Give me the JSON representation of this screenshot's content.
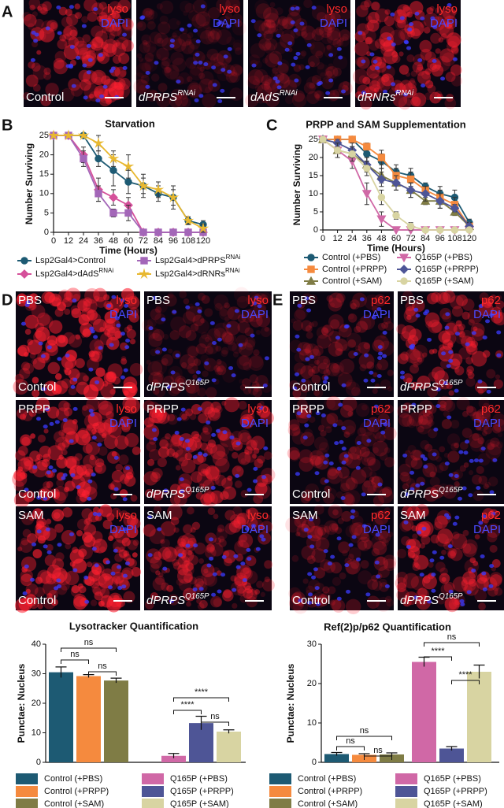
{
  "panel_letters": [
    "A",
    "B",
    "C",
    "D",
    "E"
  ],
  "micrographs": {
    "A": [
      {
        "stain": "lyso",
        "counterstain": "DAPI",
        "genotype": "Control"
      },
      {
        "stain": "lyso",
        "counterstain": "DAPI",
        "genotype": {
          "base": "dPRPS",
          "sup": "RNAi"
        }
      },
      {
        "stain": "lyso",
        "counterstain": "DAPI",
        "genotype": {
          "base": "dAdS",
          "sup": "RNAi"
        }
      },
      {
        "stain": "lyso",
        "counterstain": "DAPI",
        "genotype": {
          "base": "dRNRs",
          "sup": "RNAi"
        }
      }
    ],
    "D": [
      {
        "treatment": "PBS",
        "stain": "lyso",
        "counterstain": "DAPI",
        "genotype": "Control"
      },
      {
        "treatment": "PBS",
        "stain": "lyso",
        "counterstain": "DAPI",
        "genotype": {
          "base": "dPRPS",
          "sup": "Q165P"
        }
      },
      {
        "treatment": "PRPP",
        "stain": "lyso",
        "counterstain": "DAPI",
        "genotype": "Control"
      },
      {
        "treatment": "PRPP",
        "stain": "lyso",
        "counterstain": "DAPI",
        "genotype": {
          "base": "dPRPS",
          "sup": "Q165P"
        }
      },
      {
        "treatment": "SAM",
        "stain": "lyso",
        "counterstain": "DAPI",
        "genotype": "Control"
      },
      {
        "treatment": "SAM",
        "stain": "lyso",
        "counterstain": "DAPI",
        "genotype": {
          "base": "dPRPS",
          "sup": "Q165P"
        }
      }
    ],
    "E": [
      {
        "treatment": "PBS",
        "stain": "p62",
        "counterstain": "DAPI",
        "genotype": "Control"
      },
      {
        "treatment": "PBS",
        "stain": "p62",
        "counterstain": "DAPI",
        "genotype": {
          "base": "dPRPS",
          "sup": "Q165P"
        }
      },
      {
        "treatment": "PRPP",
        "stain": "p62",
        "counterstain": "DAPI",
        "genotype": "Control"
      },
      {
        "treatment": "PRPP",
        "stain": "p62",
        "counterstain": "DAPI",
        "genotype": {
          "base": "dPRPS",
          "sup": "Q165P"
        }
      },
      {
        "treatment": "SAM",
        "stain": "p62",
        "counterstain": "DAPI",
        "genotype": "Control"
      },
      {
        "treatment": "SAM",
        "stain": "p62",
        "counterstain": "DAPI",
        "genotype": {
          "base": "dPRPS",
          "sup": "Q165P"
        }
      }
    ]
  },
  "chart_data": [
    {
      "type": "line",
      "title": "Starvation",
      "x_label": "Time (Hours)",
      "y_label": "Number Surviving",
      "x": [
        0,
        12,
        24,
        36,
        48,
        60,
        72,
        84,
        96,
        108,
        120
      ],
      "xlim": [
        0,
        120
      ],
      "xticks": [
        0,
        12,
        24,
        36,
        48,
        60,
        72,
        84,
        96,
        108,
        120
      ],
      "ylim": [
        0,
        25
      ],
      "yticks": [
        0,
        5,
        10,
        15,
        20,
        25
      ],
      "series": [
        {
          "name": "Lsp2Gal4>Control",
          "color": "#1d5a73",
          "marker": "circle",
          "values": [
            25,
            25,
            25,
            19,
            16,
            13,
            12,
            10,
            9,
            3,
            2
          ],
          "errors": [
            0,
            0,
            0,
            2,
            4,
            3,
            3,
            2,
            3,
            1,
            1
          ]
        },
        {
          "name": "Lsp2Gal4>dAdS",
          "name_sup": "RNAi",
          "color": "#d5509a",
          "marker": "diamond",
          "values": [
            25,
            25,
            20,
            11,
            9,
            7,
            0,
            0,
            0,
            0,
            0
          ],
          "errors": [
            0,
            0,
            2,
            3,
            2,
            2,
            0,
            0,
            0,
            0,
            0
          ]
        },
        {
          "name": "Lsp2Gal4>dPRPS",
          "name_sup": "RNAi",
          "color": "#a366b8",
          "marker": "square",
          "values": [
            25,
            25,
            19,
            10,
            5,
            5,
            0,
            0,
            0,
            0,
            0
          ],
          "errors": [
            0,
            0,
            2,
            2,
            1,
            2,
            0,
            0,
            0,
            0,
            0
          ]
        },
        {
          "name": "Lsp2Gal4>dRNRs",
          "name_sup": "RNAi",
          "color": "#e8b830",
          "marker": "star",
          "values": [
            25,
            25,
            25,
            23,
            19,
            17,
            12,
            11,
            9,
            3,
            1
          ],
          "errors": [
            0,
            0,
            0,
            2,
            2,
            3,
            2,
            2,
            2,
            1,
            1
          ]
        }
      ]
    },
    {
      "type": "line",
      "title": "PRPP and SAM Supplementation",
      "x_label": "Time (Hours)",
      "y_label": "Number Surviving",
      "x": [
        0,
        12,
        24,
        36,
        48,
        60,
        72,
        84,
        96,
        108,
        120
      ],
      "xlim": [
        0,
        120
      ],
      "xticks": [
        0,
        12,
        24,
        36,
        48,
        60,
        72,
        84,
        96,
        108,
        120
      ],
      "ylim": [
        0,
        25
      ],
      "yticks": [
        0,
        5,
        10,
        15,
        20,
        25
      ],
      "series": [
        {
          "name": "Control (+PBS)",
          "color": "#1d5a73",
          "marker": "circle",
          "values": [
            25,
            25,
            25,
            21,
            19,
            16,
            15,
            12,
            10,
            9,
            2
          ],
          "errors": [
            0,
            0,
            0,
            2,
            2,
            2,
            2,
            1,
            2,
            2,
            1
          ]
        },
        {
          "name": "Control (+PRPP)",
          "color": "#f58a3e",
          "marker": "square",
          "values": [
            25,
            25,
            25,
            23,
            20,
            15,
            14,
            11,
            9,
            7,
            1
          ],
          "errors": [
            0,
            0,
            0,
            1,
            2,
            2,
            2,
            1,
            2,
            2,
            1
          ]
        },
        {
          "name": "Control (+SAM)",
          "color": "#7f7c45",
          "marker": "triangle",
          "values": [
            25,
            22,
            21,
            18,
            15,
            13,
            11,
            8,
            8,
            5,
            1
          ],
          "errors": [
            0,
            2,
            2,
            2,
            2,
            2,
            2,
            1,
            2,
            1,
            1
          ]
        },
        {
          "name": "Q165P (+PBS)",
          "color": "#d068a6",
          "marker": "triangle-down",
          "values": [
            25,
            22,
            19,
            10,
            3,
            0,
            0,
            0,
            0,
            0,
            0
          ],
          "errors": [
            0,
            2,
            2,
            3,
            2,
            0,
            0,
            0,
            0,
            0,
            0
          ]
        },
        {
          "name": "Q165P (+PRPP)",
          "color": "#4e5596",
          "marker": "diamond",
          "values": [
            25,
            24,
            22,
            18,
            14,
            13,
            11,
            10,
            8,
            6,
            1
          ],
          "errors": [
            0,
            1,
            2,
            2,
            2,
            2,
            2,
            2,
            2,
            1,
            1
          ]
        },
        {
          "name": "Q165P (+SAM)",
          "color": "#d8d4a2",
          "marker": "circle",
          "values": [
            25,
            22,
            21,
            17,
            9,
            4,
            1,
            0,
            0,
            0,
            0
          ],
          "errors": [
            0,
            2,
            2,
            2,
            2,
            1,
            1,
            0,
            0,
            0,
            0
          ]
        }
      ]
    },
    {
      "type": "bar",
      "title": "Lysotracker Quantification",
      "y_label": "Punctae: Nucleus",
      "categories": [
        "Control (+PBS)",
        "Control (+PRPP)",
        "Control (+SAM)",
        "Q165P (+PBS)",
        "Q165P (+PRPP)",
        "Q165P (+SAM)"
      ],
      "colors": [
        "#1d5a73",
        "#f58a3e",
        "#7f7c45",
        "#d068a6",
        "#4e5596",
        "#d8d4a2"
      ],
      "values": [
        30.5,
        29.2,
        27.7,
        2.2,
        13.3,
        10.4
      ],
      "errors": [
        1.8,
        0.5,
        0.8,
        0.8,
        2.3,
        0.6
      ],
      "ylim": [
        0,
        40
      ],
      "yticks": [
        0,
        10,
        20,
        30,
        40
      ],
      "annotations": [
        "ns",
        "ns",
        "ns",
        "****",
        "****",
        "ns"
      ]
    },
    {
      "type": "bar",
      "title": "Ref(2)p/p62 Quantification",
      "y_label": "Punctae: Nucleus",
      "categories": [
        "Control (+PBS)",
        "Control (+PRPP)",
        "Control (+SAM)",
        "Q165P (+PBS)",
        "Q165P (+PRPP)",
        "Q165P (+SAM)"
      ],
      "colors": [
        "#1d5a73",
        "#f58a3e",
        "#7f7c45",
        "#d068a6",
        "#4e5596",
        "#d8d4a2"
      ],
      "values": [
        2.1,
        1.9,
        2.0,
        25.5,
        3.5,
        23.0
      ],
      "errors": [
        0.4,
        0.3,
        0.4,
        1.2,
        0.5,
        1.7
      ],
      "ylim": [
        0,
        30
      ],
      "yticks": [
        0,
        10,
        20,
        30
      ],
      "annotations": [
        "ns",
        "ns",
        "ns",
        "ns",
        "****",
        "****"
      ]
    }
  ]
}
